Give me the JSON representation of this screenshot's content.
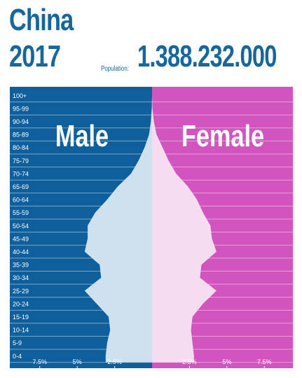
{
  "header": {
    "country": "China",
    "year": "2017",
    "population_label": "Population:",
    "population_value": "1.388.232.000"
  },
  "colors": {
    "male_bg": "#0e5f9b",
    "female_bg": "#d154bf",
    "male_fill": "#cfe1ee",
    "female_fill": "#f6dcf0",
    "title_text": "#17679f"
  },
  "chart_data": {
    "type": "population_pyramid",
    "left_title": "Male",
    "right_title": "Female",
    "unit": "percent of population",
    "xlim": [
      0,
      9.5
    ],
    "ticks": [
      {
        "value": 7.5,
        "label": "7.5%"
      },
      {
        "value": 5,
        "label": "5%"
      },
      {
        "value": 2.5,
        "label": "2.5%"
      }
    ],
    "age_groups": [
      "100+",
      "95-99",
      "90-94",
      "85-89",
      "80-84",
      "75-79",
      "70-74",
      "65-69",
      "60-64",
      "55-59",
      "50-54",
      "45-49",
      "40-44",
      "35-39",
      "30-34",
      "25-29",
      "20-24",
      "15-19",
      "10-14",
      "5-9",
      "0-4"
    ],
    "series": [
      {
        "name": "Male",
        "values": [
          0.0,
          0.02,
          0.08,
          0.2,
          0.5,
          0.9,
          1.4,
          2.3,
          3.0,
          3.8,
          4.3,
          4.3,
          4.5,
          3.5,
          3.4,
          4.5,
          3.7,
          2.9,
          2.8,
          3.0,
          3.1
        ]
      },
      {
        "name": "Female",
        "values": [
          0.0,
          0.03,
          0.12,
          0.3,
          0.7,
          1.1,
          1.6,
          2.4,
          3.0,
          3.4,
          3.9,
          4.0,
          4.3,
          3.3,
          3.2,
          4.3,
          3.4,
          2.7,
          2.6,
          2.7,
          2.8
        ]
      }
    ]
  }
}
